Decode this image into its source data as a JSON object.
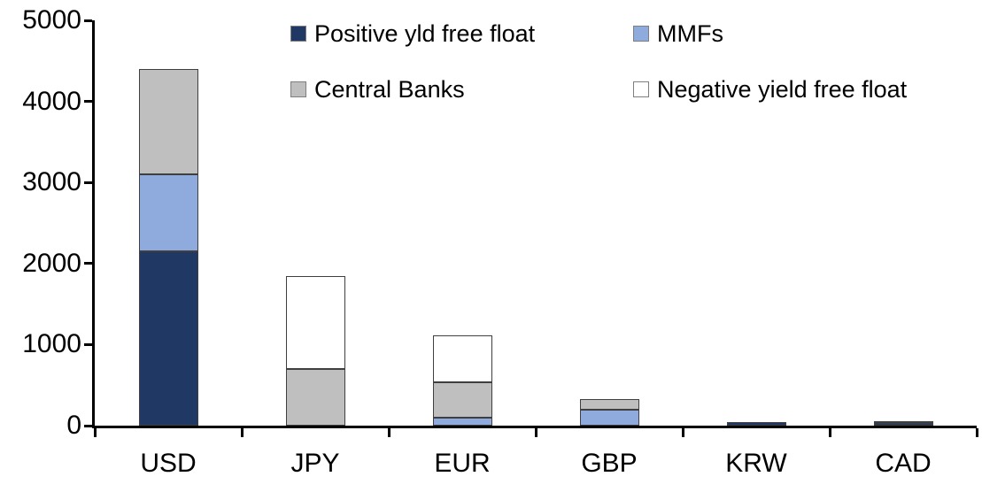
{
  "chart_data": {
    "type": "bar",
    "stacked": true,
    "title": "",
    "categories": [
      "USD",
      "JPY",
      "EUR",
      "GBP",
      "KRW",
      "CAD"
    ],
    "series": [
      {
        "name": "Positive yld free float",
        "color": "#1f3864",
        "values": [
          2150,
          0,
          0,
          0,
          40,
          30
        ]
      },
      {
        "name": "MMFs",
        "color": "#8faadc",
        "values": [
          950,
          0,
          100,
          200,
          0,
          0
        ]
      },
      {
        "name": "Central Banks",
        "color": "#bfbfbf",
        "values": [
          1300,
          700,
          430,
          125,
          0,
          30
        ]
      },
      {
        "name": "Negative yield free float",
        "color": "#ffffff",
        "values": [
          0,
          1140,
          580,
          0,
          0,
          0
        ]
      }
    ],
    "ylim": [
      0,
      5000
    ],
    "yticks": [
      0,
      1000,
      2000,
      3000,
      4000,
      5000
    ],
    "xlabel": "",
    "ylabel": "",
    "grid": false,
    "legend_position": "top-inside-two-columns",
    "axis_color": "#000000",
    "bar_border_color": "#3f3f3f"
  }
}
